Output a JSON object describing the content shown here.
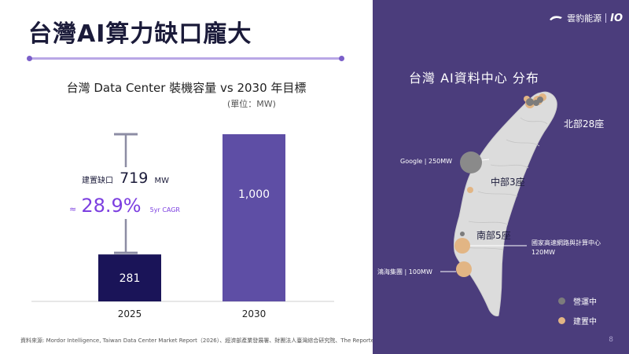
{
  "slide": {
    "title": "台灣AI算力缺口龐大",
    "footer": "資料來源: Mordor Intelligence, Taiwan Data Center Market Report（2026）、經濟部產業發展署、財團法人臺灣綜合研究院、The Reporter",
    "page_number": "8"
  },
  "chart_data": {
    "type": "bar",
    "title": "台灣 Data Center 裝機容量 vs 2030 年目標",
    "unit": "(單位：MW)",
    "categories": [
      "2025",
      "2030"
    ],
    "values": [
      281,
      1000
    ],
    "value_labels": [
      "281",
      "1,000"
    ],
    "colors": [
      "#1a1458",
      "#5e4ea5"
    ],
    "ylim": [
      0,
      1000
    ],
    "gap": {
      "label": "建置缺口",
      "value": "719",
      "unit": "MW",
      "cagr_prefix": "≈",
      "cagr": "28.9%",
      "cagr_label": "5yr CAGR"
    }
  },
  "map": {
    "title": "台灣 AI資料中心 分布",
    "regions": {
      "north": "北部28座",
      "central": "中部3座",
      "south": "南部5座"
    },
    "callouts": {
      "google": "Google | 250MW",
      "nchc": "國家高速網路與計算中心",
      "nchc_value": "120MW",
      "foxconn": "鴻海集團 | 100MW"
    },
    "legend": [
      {
        "label": "營運中",
        "color": "#7c7c7c"
      },
      {
        "label": "建置中",
        "color": "#e2b584"
      }
    ],
    "colors": {
      "panel_bg": "#4b3d7c",
      "island": "#dcdcdc",
      "operating": "#7c7c7c",
      "building": "#e2b584"
    }
  },
  "logo": {
    "name": "雲豹能源",
    "mark": "IO"
  }
}
